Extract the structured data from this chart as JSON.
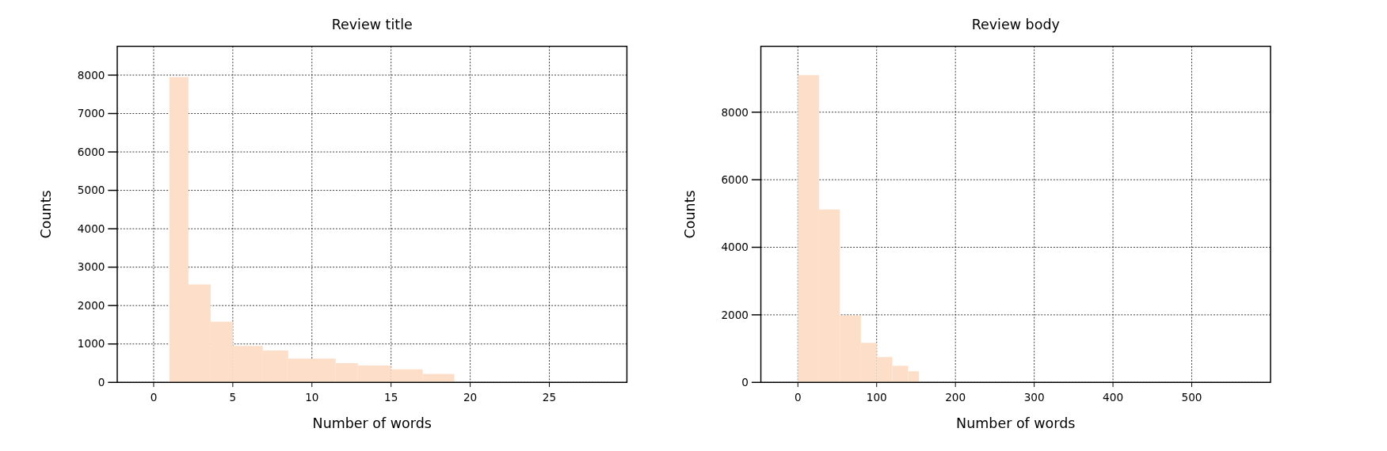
{
  "chart_data": [
    {
      "type": "histogram",
      "title": "Review title",
      "xlabel": "Number of words",
      "ylabel": "Counts",
      "bins": [
        1,
        2.2,
        3.6,
        5,
        6.9,
        8.5,
        11.5,
        12.9,
        15,
        17,
        19
      ],
      "values": [
        7950,
        2550,
        1580,
        950,
        830,
        620,
        500,
        440,
        340,
        220
      ],
      "color": "#fddfc9",
      "xlim": [
        -2.3,
        29.9
      ],
      "xticks": [
        0,
        5,
        10,
        15,
        20,
        25
      ],
      "ylim": [
        0,
        8750
      ],
      "yticks": [
        0,
        1000,
        2000,
        3000,
        4000,
        5000,
        6000,
        7000,
        8000
      ],
      "grid": true
    },
    {
      "type": "histogram",
      "title": "Review body",
      "xlabel": "Number of words",
      "ylabel": "Counts",
      "bins": [
        0,
        26.7,
        53.3,
        80,
        100,
        120,
        140,
        153.7
      ],
      "values": [
        9100,
        5120,
        1980,
        1170,
        750,
        490,
        330
      ],
      "color": "#fddfc9",
      "xlim": [
        -47,
        600
      ],
      "xticks": [
        0,
        100,
        200,
        300,
        400,
        500
      ],
      "ylim": [
        0,
        9950
      ],
      "yticks": [
        0,
        2000,
        4000,
        6000,
        8000
      ],
      "grid": true
    }
  ]
}
